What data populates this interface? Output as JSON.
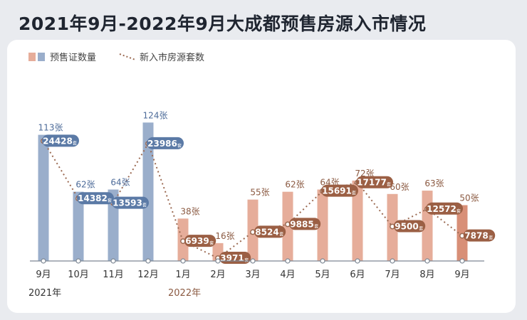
{
  "title": "2021年9月-2022年9月大成都预售房源入市情况",
  "legend": {
    "bar_label": "预售证数量",
    "line_label": "新入市房源套数"
  },
  "colors": {
    "bar_2021": "#9aaecb",
    "bar_2022": "#e6ad9a",
    "bar_dark": "#d88f77",
    "label_fill": "#9b5f44",
    "label_fill_2021": "#5b7aa6",
    "line": "#9b6a52",
    "text_2021": "#4d6b99",
    "text_2022": "#8b5a42"
  },
  "chart_data": {
    "type": "bar",
    "categories": [
      "9月",
      "10月",
      "11月",
      "12月",
      "1月",
      "2月",
      "3月",
      "4月",
      "5月",
      "6月",
      "7月",
      "8月",
      "9月"
    ],
    "year_labels": [
      "2021年",
      "2022年"
    ],
    "series": [
      {
        "name": "预售证数量",
        "values": [
          113,
          62,
          64,
          124,
          38,
          16,
          55,
          62,
          64,
          72,
          60,
          63,
          50
        ],
        "value_labels": [
          "113张",
          "62张",
          "64张",
          "124张",
          "38张",
          "16张",
          "55张",
          "62张",
          "64张",
          "72张",
          "60张",
          "63张",
          "50张"
        ]
      },
      {
        "name": "新入市房源套数",
        "values": [
          24428,
          14382,
          13593,
          23986,
          6939,
          3971,
          8524,
          9885,
          15691,
          17177,
          9500,
          12572,
          7878
        ],
        "value_labels": [
          "24428",
          "14382",
          "13593",
          "23986",
          "6939",
          "3971",
          "8524",
          "9885",
          "15691",
          "17177",
          "9500",
          "12572",
          "7878"
        ],
        "unit": "套"
      }
    ]
  }
}
